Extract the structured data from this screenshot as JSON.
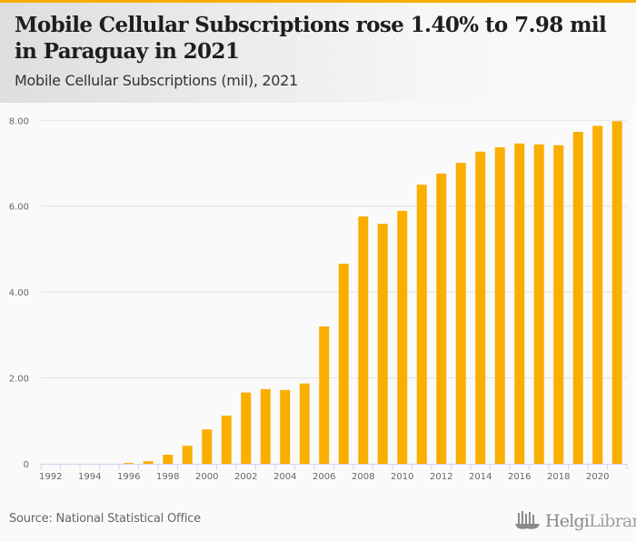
{
  "header": {
    "title": "Mobile Cellular Subscriptions rose 1.40% to 7.98 mil in Paraguay in 2021",
    "subtitle": "Mobile Cellular Subscriptions (mil), 2021"
  },
  "footer": {
    "source": "Source: National Statistical Office",
    "logo_bold": "Helgi",
    "logo_light": "Library."
  },
  "colors": {
    "accent": "#f9ae00",
    "bar": "#f9ae00",
    "grid": "#e2e2e2",
    "axis": "#ccd6eb"
  },
  "chart_data": {
    "type": "bar",
    "title": "Mobile Cellular Subscriptions rose 1.40% to 7.98 mil in Paraguay in 2021",
    "subtitle": "Mobile Cellular Subscriptions (mil), 2021",
    "xlabel": "",
    "ylabel": "",
    "ylim": [
      0,
      8
    ],
    "grid": true,
    "legend": "none",
    "yticks": [
      0,
      2,
      4,
      6,
      8
    ],
    "ytick_labels": [
      "0",
      "2.00",
      "4.00",
      "6.00",
      "8.00"
    ],
    "xtick_labels": [
      "1992",
      "1994",
      "1996",
      "1998",
      "2000",
      "2002",
      "2004",
      "2006",
      "2008",
      "2010",
      "2012",
      "2014",
      "2016",
      "2018",
      "2020"
    ],
    "categories": [
      "1992",
      "1993",
      "1994",
      "1995",
      "1996",
      "1997",
      "1998",
      "1999",
      "2000",
      "2001",
      "2002",
      "2003",
      "2004",
      "2005",
      "2006",
      "2007",
      "2008",
      "2009",
      "2010",
      "2011",
      "2012",
      "2013",
      "2014",
      "2015",
      "2016",
      "2017",
      "2018",
      "2019",
      "2020",
      "2021"
    ],
    "values": [
      0.0,
      0.0,
      0.0,
      0.0,
      0.02,
      0.06,
      0.21,
      0.42,
      0.8,
      1.12,
      1.66,
      1.74,
      1.72,
      1.87,
      3.2,
      4.66,
      5.76,
      5.59,
      5.89,
      6.5,
      6.76,
      7.01,
      7.27,
      7.37,
      7.46,
      7.44,
      7.42,
      7.73,
      7.87,
      7.98
    ],
    "source": "National Statistical Office"
  }
}
